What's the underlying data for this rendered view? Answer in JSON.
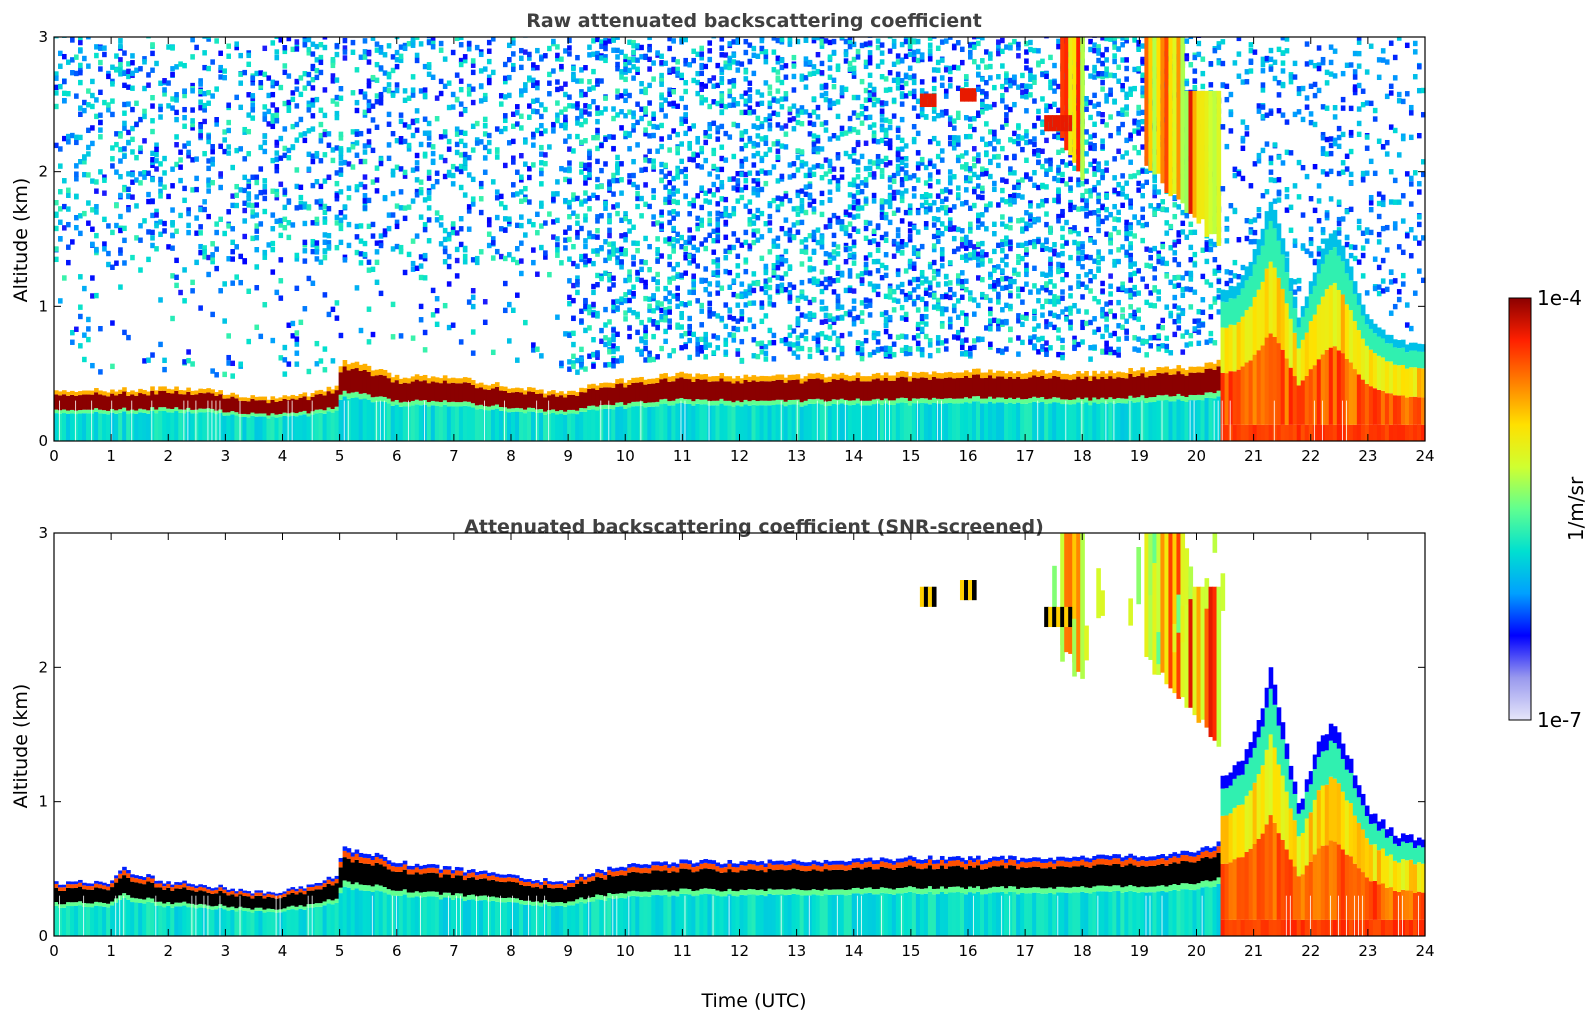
{
  "chart_data": [
    {
      "type": "heatmap",
      "title": "Raw attenuated backscattering coefficient",
      "xlabel": "",
      "ylabel": "Altitude (km)",
      "xlim": [
        0,
        24
      ],
      "ylim": [
        0,
        3
      ],
      "xticks": [
        "0",
        "1",
        "2",
        "3",
        "4",
        "5",
        "6",
        "7",
        "8",
        "9",
        "10",
        "11",
        "12",
        "13",
        "14",
        "15",
        "16",
        "17",
        "18",
        "19",
        "20",
        "21",
        "22",
        "23",
        "24"
      ],
      "yticks": [
        "0",
        "1",
        "2",
        "3"
      ],
      "screened": false,
      "layer_top_km": [
        [
          0,
          0.37
        ],
        [
          1,
          0.38
        ],
        [
          2,
          0.39
        ],
        [
          2.7,
          0.38
        ],
        [
          3.3,
          0.33
        ],
        [
          3.9,
          0.32
        ],
        [
          4.5,
          0.35
        ],
        [
          4.95,
          0.4
        ],
        [
          5.05,
          0.6
        ],
        [
          5.5,
          0.55
        ],
        [
          6,
          0.48
        ],
        [
          7,
          0.47
        ],
        [
          8,
          0.4
        ],
        [
          8.9,
          0.35
        ],
        [
          9.5,
          0.42
        ],
        [
          10,
          0.45
        ],
        [
          11,
          0.5
        ],
        [
          12,
          0.48
        ],
        [
          13,
          0.48
        ],
        [
          14,
          0.5
        ],
        [
          15,
          0.5
        ],
        [
          16,
          0.52
        ],
        [
          17,
          0.52
        ],
        [
          18,
          0.5
        ],
        [
          19,
          0.53
        ],
        [
          20,
          0.55
        ],
        [
          20.4,
          0.6
        ]
      ],
      "clouds": [
        {
          "x": [
            15.15,
            15.45
          ],
          "alt_km": [
            2.48,
            2.58
          ],
          "level": "high"
        },
        {
          "x": [
            15.85,
            16.15
          ],
          "alt_km": [
            2.52,
            2.62
          ],
          "level": "high"
        },
        {
          "x": [
            17.3,
            17.8
          ],
          "alt_km": [
            2.3,
            2.42
          ],
          "level": "high"
        }
      ],
      "precip_streaks": [
        {
          "x": [
            17.6,
            18.0
          ],
          "top_km": 3,
          "bottom_km": 1.9
        },
        {
          "x": [
            19.1,
            19.8
          ],
          "top_km": 3,
          "bottom_km": 1.7
        },
        {
          "x": [
            19.8,
            20.4
          ],
          "top_km": 2.6,
          "bottom_km": 1.4
        }
      ],
      "low_cloud_profile": [
        [
          20.5,
          1.1
        ],
        [
          20.8,
          1.2
        ],
        [
          21.1,
          1.5
        ],
        [
          21.3,
          1.8
        ],
        [
          21.5,
          1.5
        ],
        [
          21.8,
          0.9
        ],
        [
          22.1,
          1.3
        ],
        [
          22.4,
          1.6
        ],
        [
          22.7,
          1.3
        ],
        [
          23,
          0.9
        ],
        [
          23.5,
          0.75
        ],
        [
          24,
          0.72
        ]
      ]
    },
    {
      "type": "heatmap",
      "title": "Attenuated backscattering coefficient (SNR-screened)",
      "xlabel": "Time (UTC)",
      "ylabel": "Altitude (km)",
      "xlim": [
        0,
        24
      ],
      "ylim": [
        0,
        3
      ],
      "xticks": [
        "0",
        "1",
        "2",
        "3",
        "4",
        "5",
        "6",
        "7",
        "8",
        "9",
        "10",
        "11",
        "12",
        "13",
        "14",
        "15",
        "16",
        "17",
        "18",
        "19",
        "20",
        "21",
        "22",
        "23",
        "24"
      ],
      "yticks": [
        "0",
        "1",
        "2",
        "3"
      ],
      "screened": true,
      "layer_top_km": [
        [
          0,
          0.4
        ],
        [
          1,
          0.4
        ],
        [
          1.2,
          0.5
        ],
        [
          2,
          0.4
        ],
        [
          2.7,
          0.38
        ],
        [
          3.3,
          0.33
        ],
        [
          3.9,
          0.32
        ],
        [
          4.5,
          0.38
        ],
        [
          4.95,
          0.45
        ],
        [
          5.05,
          0.65
        ],
        [
          5.5,
          0.62
        ],
        [
          6,
          0.55
        ],
        [
          7,
          0.5
        ],
        [
          8,
          0.45
        ],
        [
          8.9,
          0.4
        ],
        [
          9.5,
          0.48
        ],
        [
          10,
          0.52
        ],
        [
          11,
          0.56
        ],
        [
          12,
          0.55
        ],
        [
          13,
          0.55
        ],
        [
          14,
          0.57
        ],
        [
          15,
          0.58
        ],
        [
          16,
          0.58
        ],
        [
          17,
          0.58
        ],
        [
          18,
          0.58
        ],
        [
          19,
          0.6
        ],
        [
          20,
          0.62
        ],
        [
          20.4,
          0.7
        ]
      ],
      "clouds": [
        {
          "x": [
            15.15,
            15.45
          ],
          "alt_km": [
            2.45,
            2.6
          ],
          "level": "saturated"
        },
        {
          "x": [
            15.85,
            16.15
          ],
          "alt_km": [
            2.5,
            2.65
          ],
          "level": "saturated"
        },
        {
          "x": [
            17.3,
            17.8
          ],
          "alt_km": [
            2.3,
            2.45
          ],
          "level": "saturated"
        }
      ],
      "precip_streaks": [
        {
          "x": [
            17.6,
            18.0
          ],
          "top_km": 3,
          "bottom_km": 1.9
        },
        {
          "x": [
            19.1,
            19.8
          ],
          "top_km": 3,
          "bottom_km": 1.7
        },
        {
          "x": [
            19.8,
            20.4
          ],
          "top_km": 2.6,
          "bottom_km": 1.4
        }
      ],
      "low_cloud_profile": [
        [
          20.5,
          1.2
        ],
        [
          20.8,
          1.3
        ],
        [
          21.1,
          1.6
        ],
        [
          21.3,
          2.0
        ],
        [
          21.5,
          1.6
        ],
        [
          21.8,
          0.95
        ],
        [
          22.1,
          1.4
        ],
        [
          22.4,
          1.6
        ],
        [
          22.7,
          1.3
        ],
        [
          23,
          0.95
        ],
        [
          23.5,
          0.75
        ],
        [
          24,
          0.72
        ]
      ]
    }
  ],
  "colorbar": {
    "label": "1/m/sr",
    "max_label": "1e-4",
    "min_label": "1e-7",
    "scale": "log",
    "range": [
      1e-07,
      0.0001
    ],
    "colormap": [
      "#e6e6fa",
      "#9999ee",
      "#0000ff",
      "#00a0ff",
      "#00e0d0",
      "#60ff90",
      "#d0ff30",
      "#ffe000",
      "#ff8000",
      "#ff2000",
      "#8b0000"
    ]
  }
}
